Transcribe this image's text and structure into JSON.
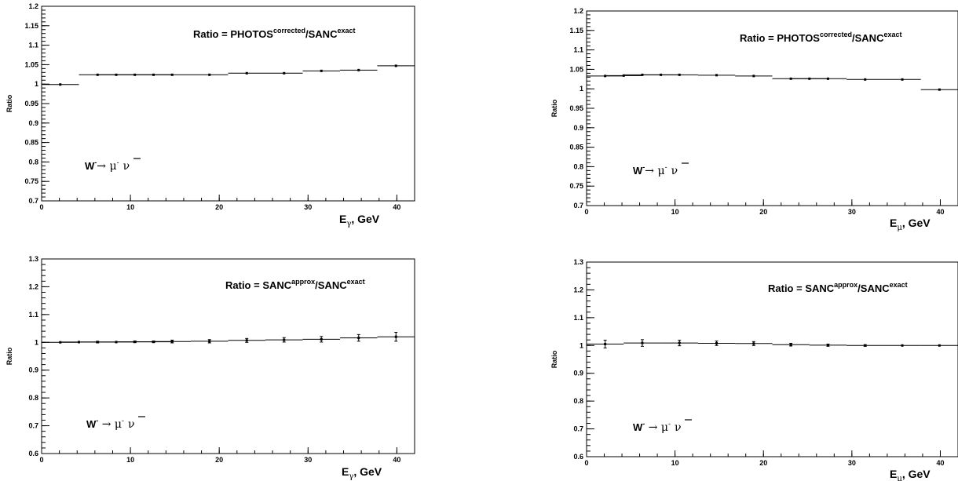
{
  "chart_data": [
    {
      "type": "scatter",
      "x_label": {
        "main": "E",
        "sub": "γ",
        "rest": ", GeV"
      },
      "y_label": "Ratio",
      "ratio_label": {
        "prefix": "Ratio = PHOTOS",
        "sup1": "corrected",
        "mid": "/SANC",
        "sup2": "exact"
      },
      "process": {
        "w": "W",
        "wsup": "-",
        "arrow": "→ μ",
        "musup": "-",
        "nu": "ν"
      },
      "xlim": [
        0,
        42
      ],
      "ylim": [
        0.7,
        1.2
      ],
      "x_ticks": [
        0,
        10,
        20,
        30,
        40
      ],
      "y_ticks": [
        0.7,
        0.75,
        0.8,
        0.85,
        0.9,
        0.95,
        1,
        1.05,
        1.1,
        1.15,
        1.2
      ],
      "y_tick_labels": [
        "0.7",
        "0.75",
        "0.8",
        "0.85",
        "0.9",
        "0.95",
        "1",
        "1.05",
        "1.1",
        "1.15",
        "1.2"
      ],
      "bin_edges": [
        0,
        4.2,
        8.4,
        12.6,
        16.8,
        21,
        25.2,
        29.4,
        33.6,
        37.8,
        42
      ],
      "points": [
        {
          "x": 2.1,
          "y": 0.999,
          "err": 0.001
        },
        {
          "x": 6.3,
          "y": 1.024,
          "err": 0.001
        },
        {
          "x": 8.4,
          "y": 1.024,
          "err": 0.001
        },
        {
          "x": 10.5,
          "y": 1.024,
          "err": 0.001
        },
        {
          "x": 12.6,
          "y": 1.024,
          "err": 0.001
        },
        {
          "x": 14.7,
          "y": 1.024,
          "err": 0.001
        },
        {
          "x": 18.9,
          "y": 1.024,
          "err": 0.001
        },
        {
          "x": 23.1,
          "y": 1.028,
          "err": 0.001
        },
        {
          "x": 27.3,
          "y": 1.028,
          "err": 0.001
        },
        {
          "x": 31.5,
          "y": 1.034,
          "err": 0.001
        },
        {
          "x": 35.7,
          "y": 1.036,
          "err": 0.001
        },
        {
          "x": 39.9,
          "y": 1.047,
          "err": 0.001
        }
      ]
    },
    {
      "type": "scatter",
      "x_label": {
        "main": "E",
        "sub": "μ",
        "rest": ", GeV"
      },
      "y_label": "Ratio",
      "ratio_label": {
        "prefix": "Ratio = PHOTOS",
        "sup1": "corrected",
        "mid": "/SANC",
        "sup2": "exact"
      },
      "process": {
        "w": "W",
        "wsup": "-",
        "arrow": "→ μ",
        "musup": "-",
        "nu": "ν"
      },
      "xlim": [
        0,
        42
      ],
      "ylim": [
        0.7,
        1.2
      ],
      "x_ticks": [
        0,
        10,
        20,
        30,
        40
      ],
      "y_ticks": [
        0.7,
        0.75,
        0.8,
        0.85,
        0.9,
        0.95,
        1,
        1.05,
        1.1,
        1.15,
        1.2
      ],
      "y_tick_labels": [
        "0.7",
        "0.75",
        "0.8",
        "0.85",
        "0.9",
        "0.95",
        "1",
        "1.05",
        "1.1",
        "1.15",
        "1.2"
      ],
      "bin_edges": [
        0,
        4.2,
        8.4,
        12.6,
        16.8,
        21,
        25.2,
        29.4,
        33.6,
        37.8,
        42
      ],
      "points": [
        {
          "x": 2.1,
          "y": 1.033,
          "err": 0.001
        },
        {
          "x": 4.2,
          "y": 1.034,
          "err": 0.001
        },
        {
          "x": 6.3,
          "y": 1.036,
          "err": 0.001
        },
        {
          "x": 8.4,
          "y": 1.036,
          "err": 0.001
        },
        {
          "x": 10.5,
          "y": 1.036,
          "err": 0.001
        },
        {
          "x": 14.7,
          "y": 1.035,
          "err": 0.001
        },
        {
          "x": 18.9,
          "y": 1.033,
          "err": 0.001
        },
        {
          "x": 23.1,
          "y": 1.026,
          "err": 0.001
        },
        {
          "x": 25.2,
          "y": 1.026,
          "err": 0.001
        },
        {
          "x": 27.3,
          "y": 1.026,
          "err": 0.001
        },
        {
          "x": 31.5,
          "y": 1.024,
          "err": 0.001
        },
        {
          "x": 35.7,
          "y": 1.024,
          "err": 0.001
        },
        {
          "x": 39.9,
          "y": 0.998,
          "err": 0.001
        }
      ]
    },
    {
      "type": "scatter",
      "x_label": {
        "main": "E",
        "sub": "γ",
        "rest": ", GeV"
      },
      "y_label": "Ratio",
      "ratio_label": {
        "prefix": "Ratio = SANC",
        "sup1": "approx",
        "mid": "/SANC",
        "sup2": "exact"
      },
      "process": {
        "w": "W",
        "wsup": "-",
        "arrow": " → μ",
        "musup": "-",
        "nu": "ν"
      },
      "xlim": [
        0,
        42
      ],
      "ylim": [
        0.6,
        1.3
      ],
      "x_ticks": [
        0,
        10,
        20,
        30,
        40
      ],
      "y_ticks": [
        0.6,
        0.7,
        0.8,
        0.9,
        1,
        1.1,
        1.2,
        1.3
      ],
      "y_tick_labels": [
        "0.6",
        "0.7",
        "0.8",
        "0.9",
        "1",
        "1.1",
        "1.2",
        "1.3"
      ],
      "bin_edges": [
        0,
        4.2,
        8.4,
        12.6,
        16.8,
        21,
        25.2,
        29.4,
        33.6,
        37.8,
        42
      ],
      "points": [
        {
          "x": 2.1,
          "y": 1.0,
          "err": 0.002
        },
        {
          "x": 4.2,
          "y": 1.001,
          "err": 0.002
        },
        {
          "x": 6.3,
          "y": 1.001,
          "err": 0.003
        },
        {
          "x": 8.4,
          "y": 1.001,
          "err": 0.002
        },
        {
          "x": 10.5,
          "y": 1.002,
          "err": 0.003
        },
        {
          "x": 12.6,
          "y": 1.002,
          "err": 0.003
        },
        {
          "x": 14.7,
          "y": 1.003,
          "err": 0.005
        },
        {
          "x": 18.9,
          "y": 1.004,
          "err": 0.006
        },
        {
          "x": 23.1,
          "y": 1.007,
          "err": 0.007
        },
        {
          "x": 27.3,
          "y": 1.009,
          "err": 0.008
        },
        {
          "x": 31.5,
          "y": 1.011,
          "err": 0.01
        },
        {
          "x": 35.7,
          "y": 1.016,
          "err": 0.012
        },
        {
          "x": 39.9,
          "y": 1.02,
          "err": 0.016
        }
      ]
    },
    {
      "type": "scatter",
      "x_label": {
        "main": "E",
        "sub": "μ",
        "rest": ", GeV"
      },
      "y_label": "Ratio",
      "ratio_label": {
        "prefix": "Ratio = SANC",
        "sup1": "approx",
        "mid": "/SANC",
        "sup2": "exact"
      },
      "process": {
        "w": "W",
        "wsup": "-",
        "arrow": " → μ",
        "musup": "-",
        "nu": "ν"
      },
      "xlim": [
        0,
        42
      ],
      "ylim": [
        0.6,
        1.3
      ],
      "x_ticks": [
        0,
        10,
        20,
        30,
        40
      ],
      "y_ticks": [
        0.6,
        0.7,
        0.8,
        0.9,
        1,
        1.1,
        1.2,
        1.3
      ],
      "y_tick_labels": [
        "0.6",
        "0.7",
        "0.8",
        "0.9",
        "1",
        "1.1",
        "1.2",
        "1.3"
      ],
      "bin_edges": [
        0,
        4.2,
        8.4,
        12.6,
        16.8,
        21,
        25.2,
        29.4,
        33.6,
        37.8,
        42
      ],
      "points": [
        {
          "x": 2.1,
          "y": 1.005,
          "err": 0.014
        },
        {
          "x": 6.3,
          "y": 1.009,
          "err": 0.012
        },
        {
          "x": 10.5,
          "y": 1.009,
          "err": 0.01
        },
        {
          "x": 14.7,
          "y": 1.008,
          "err": 0.008
        },
        {
          "x": 18.9,
          "y": 1.007,
          "err": 0.007
        },
        {
          "x": 23.1,
          "y": 1.003,
          "err": 0.005
        },
        {
          "x": 27.3,
          "y": 1.001,
          "err": 0.004
        },
        {
          "x": 31.5,
          "y": 1.0,
          "err": 0.003
        },
        {
          "x": 35.7,
          "y": 1.0,
          "err": 0.002
        },
        {
          "x": 39.9,
          "y": 1.0,
          "err": 0.002
        }
      ]
    }
  ]
}
